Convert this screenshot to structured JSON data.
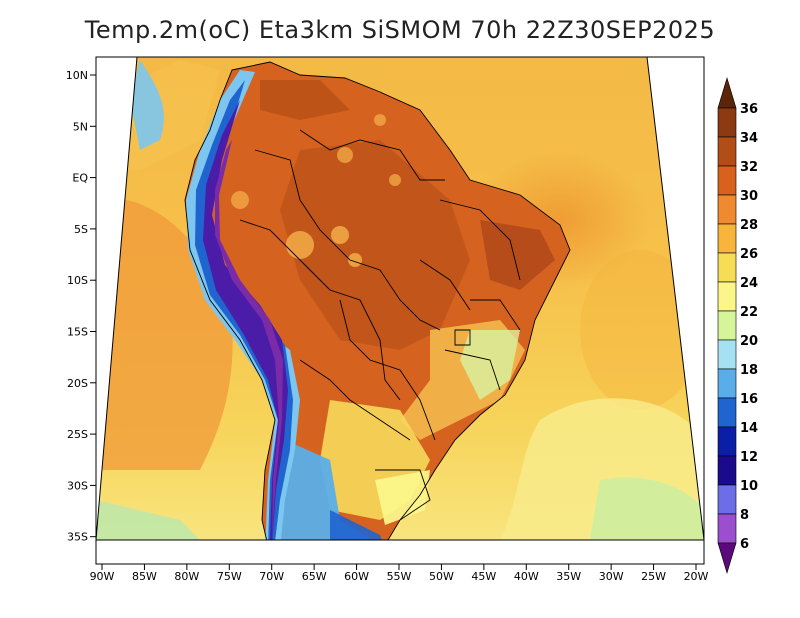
{
  "title": "Temp.2m(oC) Eta3km SiSMOM 70h 22Z30SEP2025",
  "map": {
    "lon_labels": [
      "90W",
      "85W",
      "80W",
      "75W",
      "70W",
      "65W",
      "60W",
      "55W",
      "50W",
      "45W",
      "40W",
      "35W",
      "30W",
      "25W",
      "20W"
    ],
    "lat_labels": [
      "10N",
      "5N",
      "EQ",
      "5S",
      "10S",
      "15S",
      "20S",
      "25S",
      "30S",
      "35S"
    ]
  },
  "colorbar": {
    "labels": [
      "36",
      "34",
      "32",
      "30",
      "28",
      "26",
      "24",
      "22",
      "20",
      "18",
      "16",
      "14",
      "12",
      "10",
      "8",
      "6"
    ],
    "colors": [
      "#6b2d0c",
      "#8c3a12",
      "#b34d16",
      "#d8621d",
      "#ee8a2f",
      "#f7b53b",
      "#f7dc55",
      "#fbf58a",
      "#d6f59b",
      "#a6e1f3",
      "#5aaee8",
      "#1f64cf",
      "#0b1fa6",
      "#1a0a8c",
      "#6c6ee8",
      "#9b4fcf",
      "#6a0f8a"
    ],
    "top_arrow_color": "#5c250a",
    "bottom_arrow_color": "#5a0a7a"
  },
  "palette": {
    "ocean_warm": "#f3a33c",
    "ocean_mid": "#f7c24a",
    "ocean_cool": "#f8e37a",
    "land_hot": "#d5631f",
    "land_very_hot": "#b34d16",
    "andes_cold": "#2a1a9c",
    "andes_peak": "#7a2ba8",
    "south_cool": "#7cc6ef"
  }
}
